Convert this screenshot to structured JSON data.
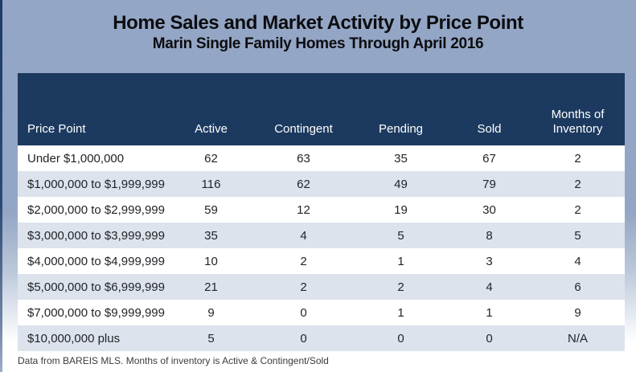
{
  "title": "Home Sales and Market Activity by Price Point",
  "subtitle": "Marin Single Family Homes Through April 2016",
  "footnote": "Data from BAREIS MLS. Months of inventory is Active & Contingent/Sold",
  "colors": {
    "page_background_top": "#94A6C5",
    "page_background_bottom": "#FFFFFF",
    "header_background": "#1C3A5F",
    "header_text": "#FFFFFF",
    "alt_row_background": "#DCE3EC",
    "row_background": "#FFFFFF",
    "body_text": "#222428",
    "left_edge_accent": "#1E3C63"
  },
  "chart_data": {
    "type": "table",
    "title": "Home Sales and Market Activity by Price Point",
    "subtitle": "Marin Single Family Homes Through April 2016",
    "columns": [
      "Price Point",
      "Active",
      "Contingent",
      "Pending",
      "Sold",
      "Months of Inventory"
    ],
    "rows": [
      [
        "Under $1,000,000",
        "62",
        "63",
        "35",
        "67",
        "2"
      ],
      [
        "$1,000,000 to $1,999,999",
        "116",
        "62",
        "49",
        "79",
        "2"
      ],
      [
        "$2,000,000 to $2,999,999",
        "59",
        "12",
        "19",
        "30",
        "2"
      ],
      [
        "$3,000,000 to $3,999,999",
        "35",
        "4",
        "5",
        "8",
        "5"
      ],
      [
        "$4,000,000 to $4,999,999",
        "10",
        "2",
        "1",
        "3",
        "4"
      ],
      [
        "$5,000,000 to $6,999,999",
        "21",
        "2",
        "2",
        "4",
        "6"
      ],
      [
        "$7,000,000 to $9,999,999",
        "9",
        "0",
        "1",
        "1",
        "9"
      ],
      [
        "$10,000,000 plus",
        "5",
        "0",
        "0",
        "0",
        "N/A"
      ]
    ],
    "footnote": "Data from BAREIS MLS. Months of inventory is Active & Contingent/Sold",
    "layout": {
      "alternating_rows": true,
      "header_position": "top"
    }
  }
}
